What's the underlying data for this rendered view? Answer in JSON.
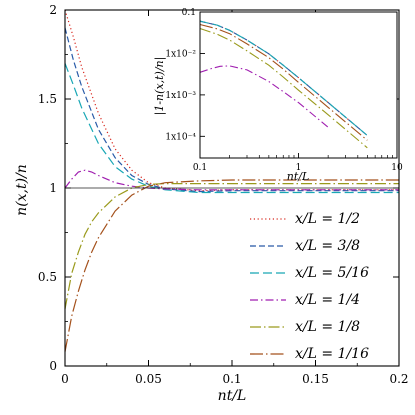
{
  "chart_data": [
    {
      "type": "line",
      "xlabel": "nt/L",
      "ylabel": "n(x,t)/n",
      "xlim": [
        0,
        0.2
      ],
      "ylim": [
        0,
        2
      ],
      "xticks": [
        "0",
        "0.05",
        "0.1",
        "0.15",
        "0.2"
      ],
      "yticks": [
        "0",
        "0.5",
        "1",
        "1.5",
        "2"
      ],
      "reference_line_y": 1,
      "legend_position": "bottom-right",
      "series": [
        {
          "name": "x/L = 1/2",
          "color": "#d8281e",
          "dash": "1.2,2.6",
          "x": [
            0,
            0.005,
            0.01,
            0.02,
            0.03,
            0.04,
            0.05,
            0.06,
            0.08,
            0.1,
            0.12,
            0.15,
            0.2
          ],
          "y": [
            2.0,
            1.85,
            1.68,
            1.42,
            1.22,
            1.1,
            1.03,
            1.0,
            0.985,
            0.99,
            0.99,
            0.99,
            0.99
          ]
        },
        {
          "name": "x/L = 3/8",
          "color": "#2a5ba8",
          "dash": "6,3",
          "x": [
            0,
            0.005,
            0.01,
            0.02,
            0.03,
            0.04,
            0.05,
            0.06,
            0.08,
            0.1,
            0.12,
            0.15,
            0.2
          ],
          "y": [
            1.9,
            1.72,
            1.57,
            1.33,
            1.17,
            1.07,
            1.02,
            0.995,
            0.98,
            0.985,
            0.985,
            0.985,
            0.985
          ]
        },
        {
          "name": "x/L = 5/16",
          "color": "#19a7b5",
          "dash": "9,4",
          "x": [
            0,
            0.005,
            0.01,
            0.02,
            0.03,
            0.04,
            0.05,
            0.06,
            0.08,
            0.1,
            0.12,
            0.15,
            0.2
          ],
          "y": [
            1.7,
            1.58,
            1.45,
            1.25,
            1.12,
            1.05,
            1.01,
            0.99,
            0.975,
            0.975,
            0.975,
            0.975,
            0.975
          ]
        },
        {
          "name": "x/L = 1/4",
          "color": "#a01fb0",
          "dash": "8,3,1.5,3",
          "x": [
            0,
            0.004,
            0.008,
            0.012,
            0.016,
            0.02,
            0.03,
            0.04,
            0.05,
            0.06,
            0.08,
            0.1,
            0.15,
            0.2
          ],
          "y": [
            1.0,
            1.05,
            1.09,
            1.1,
            1.09,
            1.07,
            1.03,
            1.01,
            1.0,
            0.995,
            0.99,
            0.99,
            0.99,
            0.99
          ]
        },
        {
          "name": "x/L = 1/8",
          "color": "#9a9a1c",
          "dash": "11,3,1.5,3",
          "x": [
            0,
            0.004,
            0.008,
            0.012,
            0.016,
            0.02,
            0.03,
            0.04,
            0.05,
            0.06,
            0.08,
            0.1,
            0.15,
            0.2
          ],
          "y": [
            0.32,
            0.52,
            0.64,
            0.74,
            0.81,
            0.86,
            0.95,
            1.0,
            1.02,
            1.025,
            1.025,
            1.025,
            1.025,
            1.025
          ]
        },
        {
          "name": "x/L = 1/16",
          "color": "#a4511c",
          "dash": "13,3,1.5,3",
          "x": [
            0,
            0.004,
            0.008,
            0.012,
            0.016,
            0.02,
            0.03,
            0.04,
            0.05,
            0.06,
            0.08,
            0.1,
            0.15,
            0.2
          ],
          "y": [
            0.08,
            0.28,
            0.42,
            0.54,
            0.64,
            0.72,
            0.87,
            0.96,
            1.01,
            1.03,
            1.04,
            1.045,
            1.045,
            1.045
          ]
        }
      ]
    },
    {
      "type": "line",
      "inset": true,
      "xlabel": "nt/L",
      "ylabel": "|1-n(x,t)/n|",
      "x_scale": "log",
      "y_scale": "log",
      "xlim": [
        0.1,
        10
      ],
      "ylim": [
        3e-05,
        0.1
      ],
      "xticks": [
        "0.1",
        "1",
        "10"
      ],
      "yticks": [
        "0.1",
        "1x10⁻²",
        "1x10⁻³",
        "1x10⁻⁴"
      ],
      "series": [
        {
          "color": "#d8281e",
          "dash": "1.2,2.6",
          "x": [
            0.1,
            0.15,
            0.2,
            0.3,
            0.5,
            0.7,
            1,
            2,
            5,
            10
          ],
          "y": [
            0.06,
            0.048,
            0.036,
            0.021,
            0.0098,
            0.0052,
            0.0026,
            0.00065,
            0.000105,
            2.6e-05
          ]
        },
        {
          "color": "#2a5ba8",
          "dash": "6,3",
          "x": [
            0.1,
            0.15,
            0.2,
            0.3,
            0.5,
            0.7,
            1,
            2,
            5,
            10
          ],
          "y": [
            0.06,
            0.048,
            0.036,
            0.021,
            0.0098,
            0.0052,
            0.0026,
            0.00065,
            0.000105,
            2.6e-05
          ]
        },
        {
          "color": "#19a7b5",
          "dash": "9,4",
          "x": [
            0.1,
            0.15,
            0.2,
            0.3,
            0.5,
            0.7,
            1,
            2,
            5,
            10
          ],
          "y": [
            0.06,
            0.048,
            0.036,
            0.021,
            0.0098,
            0.0052,
            0.0026,
            0.00065,
            0.000105,
            2.6e-05
          ]
        },
        {
          "color": "#a01fb0",
          "dash": "8,3,1.5,3",
          "x": [
            0.1,
            0.13,
            0.16,
            0.2,
            0.3,
            0.5,
            0.7,
            1,
            2,
            5,
            10
          ],
          "y": [
            0.0035,
            0.0043,
            0.0049,
            0.005,
            0.004,
            0.0021,
            0.0012,
            0.00065,
            0.000165,
            2.7e-05,
            6.6e-06
          ]
        },
        {
          "color": "#9a9a1c",
          "dash": "11,3,1.5,3",
          "x": [
            0.1,
            0.15,
            0.2,
            0.3,
            0.5,
            0.7,
            1,
            2,
            5,
            10
          ],
          "y": [
            0.04,
            0.029,
            0.021,
            0.0115,
            0.0052,
            0.0027,
            0.0013,
            0.00033,
            5.3e-05,
            1.3e-05
          ]
        },
        {
          "color": "#a4511c",
          "dash": "13,3,1.5,3",
          "x": [
            0.1,
            0.15,
            0.2,
            0.3,
            0.5,
            0.7,
            1,
            2,
            5,
            10
          ],
          "y": [
            0.05,
            0.039,
            0.03,
            0.017,
            0.0079,
            0.0042,
            0.002,
            0.0005,
            8e-05,
            2e-05
          ]
        }
      ]
    }
  ]
}
